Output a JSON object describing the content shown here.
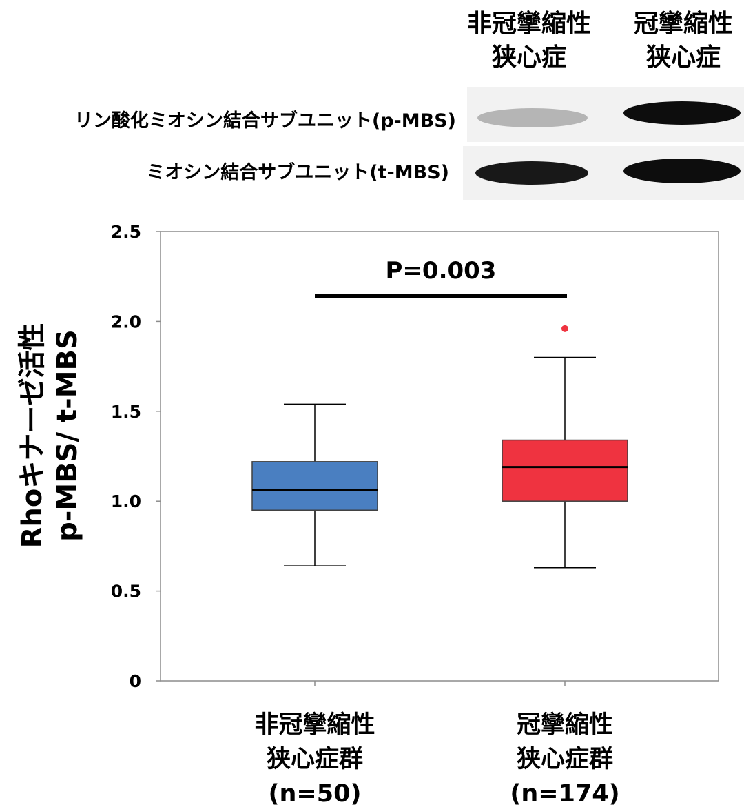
{
  "blot": {
    "column_headers": [
      [
        "非冠攣縮性",
        "狭心症"
      ],
      [
        "冠攣縮性",
        "狭心症"
      ]
    ],
    "lanes": [
      {
        "label": "リン酸化ミオシン結合サブユニット(p-MBS)",
        "band_intensity": [
          0.25,
          0.95
        ]
      },
      {
        "label": "ミオシン結合サブユニット(t-MBS)",
        "band_intensity": [
          0.9,
          0.95
        ]
      }
    ]
  },
  "chart_data": {
    "type": "box",
    "ylabel_lines": [
      "Rhoキナーゼ活性",
      "p-MBS/ t-MBS"
    ],
    "ylim": [
      0,
      2.5
    ],
    "yticks": [
      0,
      0.5,
      1.0,
      1.5,
      2.0,
      2.5
    ],
    "ytick_labels": [
      "0",
      "0.5",
      "1.0",
      "1.5",
      "2.0",
      "2.5"
    ],
    "grid": false,
    "categories": [
      [
        "非冠攣縮性",
        "狭心症群",
        "(n=50)"
      ],
      [
        "冠攣縮性",
        "狭心症群",
        "(n=174)"
      ]
    ],
    "boxes": [
      {
        "whisker_low": 0.64,
        "q1": 0.95,
        "median": 1.06,
        "q3": 1.22,
        "whisker_high": 1.54,
        "outliers": [],
        "color": "#4a7fc1"
      },
      {
        "whisker_low": 0.63,
        "q1": 1.0,
        "median": 1.19,
        "q3": 1.34,
        "whisker_high": 1.8,
        "outliers": [
          1.96
        ],
        "color": "#ef3340"
      }
    ],
    "annotation": {
      "text": "P=0.003",
      "y": 2.14
    }
  }
}
